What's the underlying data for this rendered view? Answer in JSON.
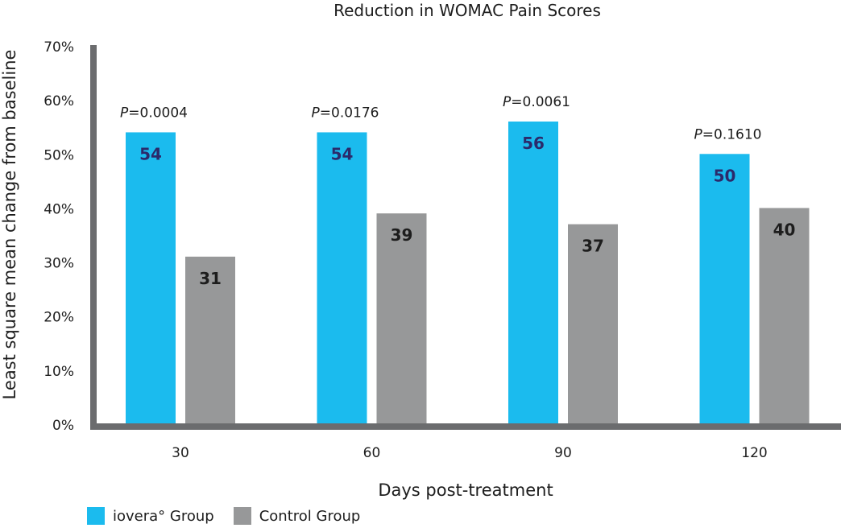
{
  "chart_data": {
    "type": "bar",
    "title": "Reduction in WOMAC Pain Scores",
    "xlabel": "Days post-treatment",
    "ylabel": "Least square  mean change from baseline",
    "ylim": [
      0,
      70
    ],
    "yticks": [
      "0%",
      "10%",
      "20%",
      "30%",
      "40%",
      "50%",
      "60%",
      "70%"
    ],
    "categories": [
      "30",
      "60",
      "90",
      "120"
    ],
    "series": [
      {
        "name": "iovera° Group",
        "values": [
          54,
          54,
          56,
          50
        ],
        "color": "#1bbbee",
        "label_color": "#2b2a6b"
      },
      {
        "name": "Control Group",
        "values": [
          31,
          39,
          37,
          40
        ],
        "color": "#979899",
        "label_color": "#1d1d1d"
      }
    ],
    "p_values": [
      "=0.0004",
      "=0.0176",
      "=0.0061",
      "=0.1610"
    ],
    "p_prefix": "P",
    "grid": false,
    "legend_position": "bottom-left"
  },
  "colors": {
    "axis": "#6b6c6e"
  }
}
